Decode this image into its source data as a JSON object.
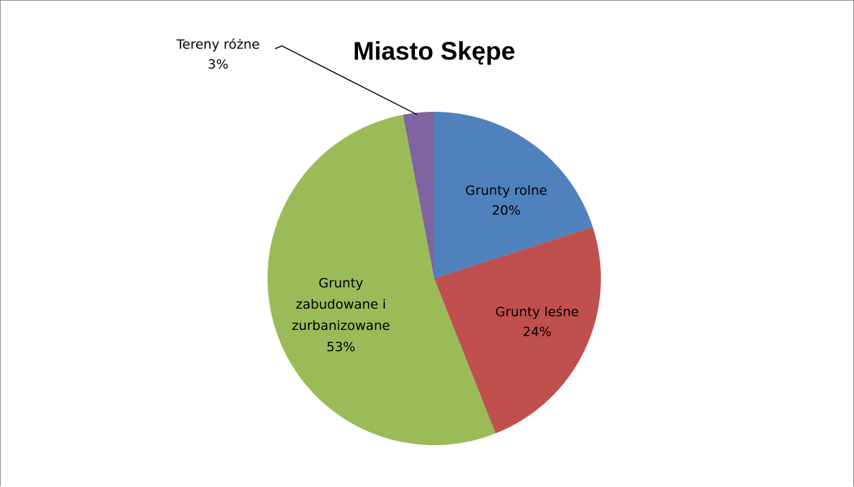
{
  "chart_data": {
    "type": "pie",
    "title": "Miasto Skępe",
    "slices": [
      {
        "label": "Grunty rolne",
        "value": 20,
        "value_label": "20%",
        "color": "#4f81bd"
      },
      {
        "label": "Grunty leśne",
        "value": 24,
        "value_label": "24%",
        "color": "#c0504d"
      },
      {
        "label": "Grunty zabudowane i zurbanizowane",
        "value": 53,
        "value_label": "53%",
        "color": "#9bbb59"
      },
      {
        "label": "Tereny różne",
        "value": 3,
        "value_label": "3%",
        "color": "#8064a2"
      }
    ],
    "label_lines": {
      "Grunty zabudowane i zurbanizowane": [
        "Grunty",
        "zabudowane i",
        "zurbanizowane"
      ]
    },
    "legend": "none",
    "start_angle": "12 o'clock, clockwise"
  }
}
